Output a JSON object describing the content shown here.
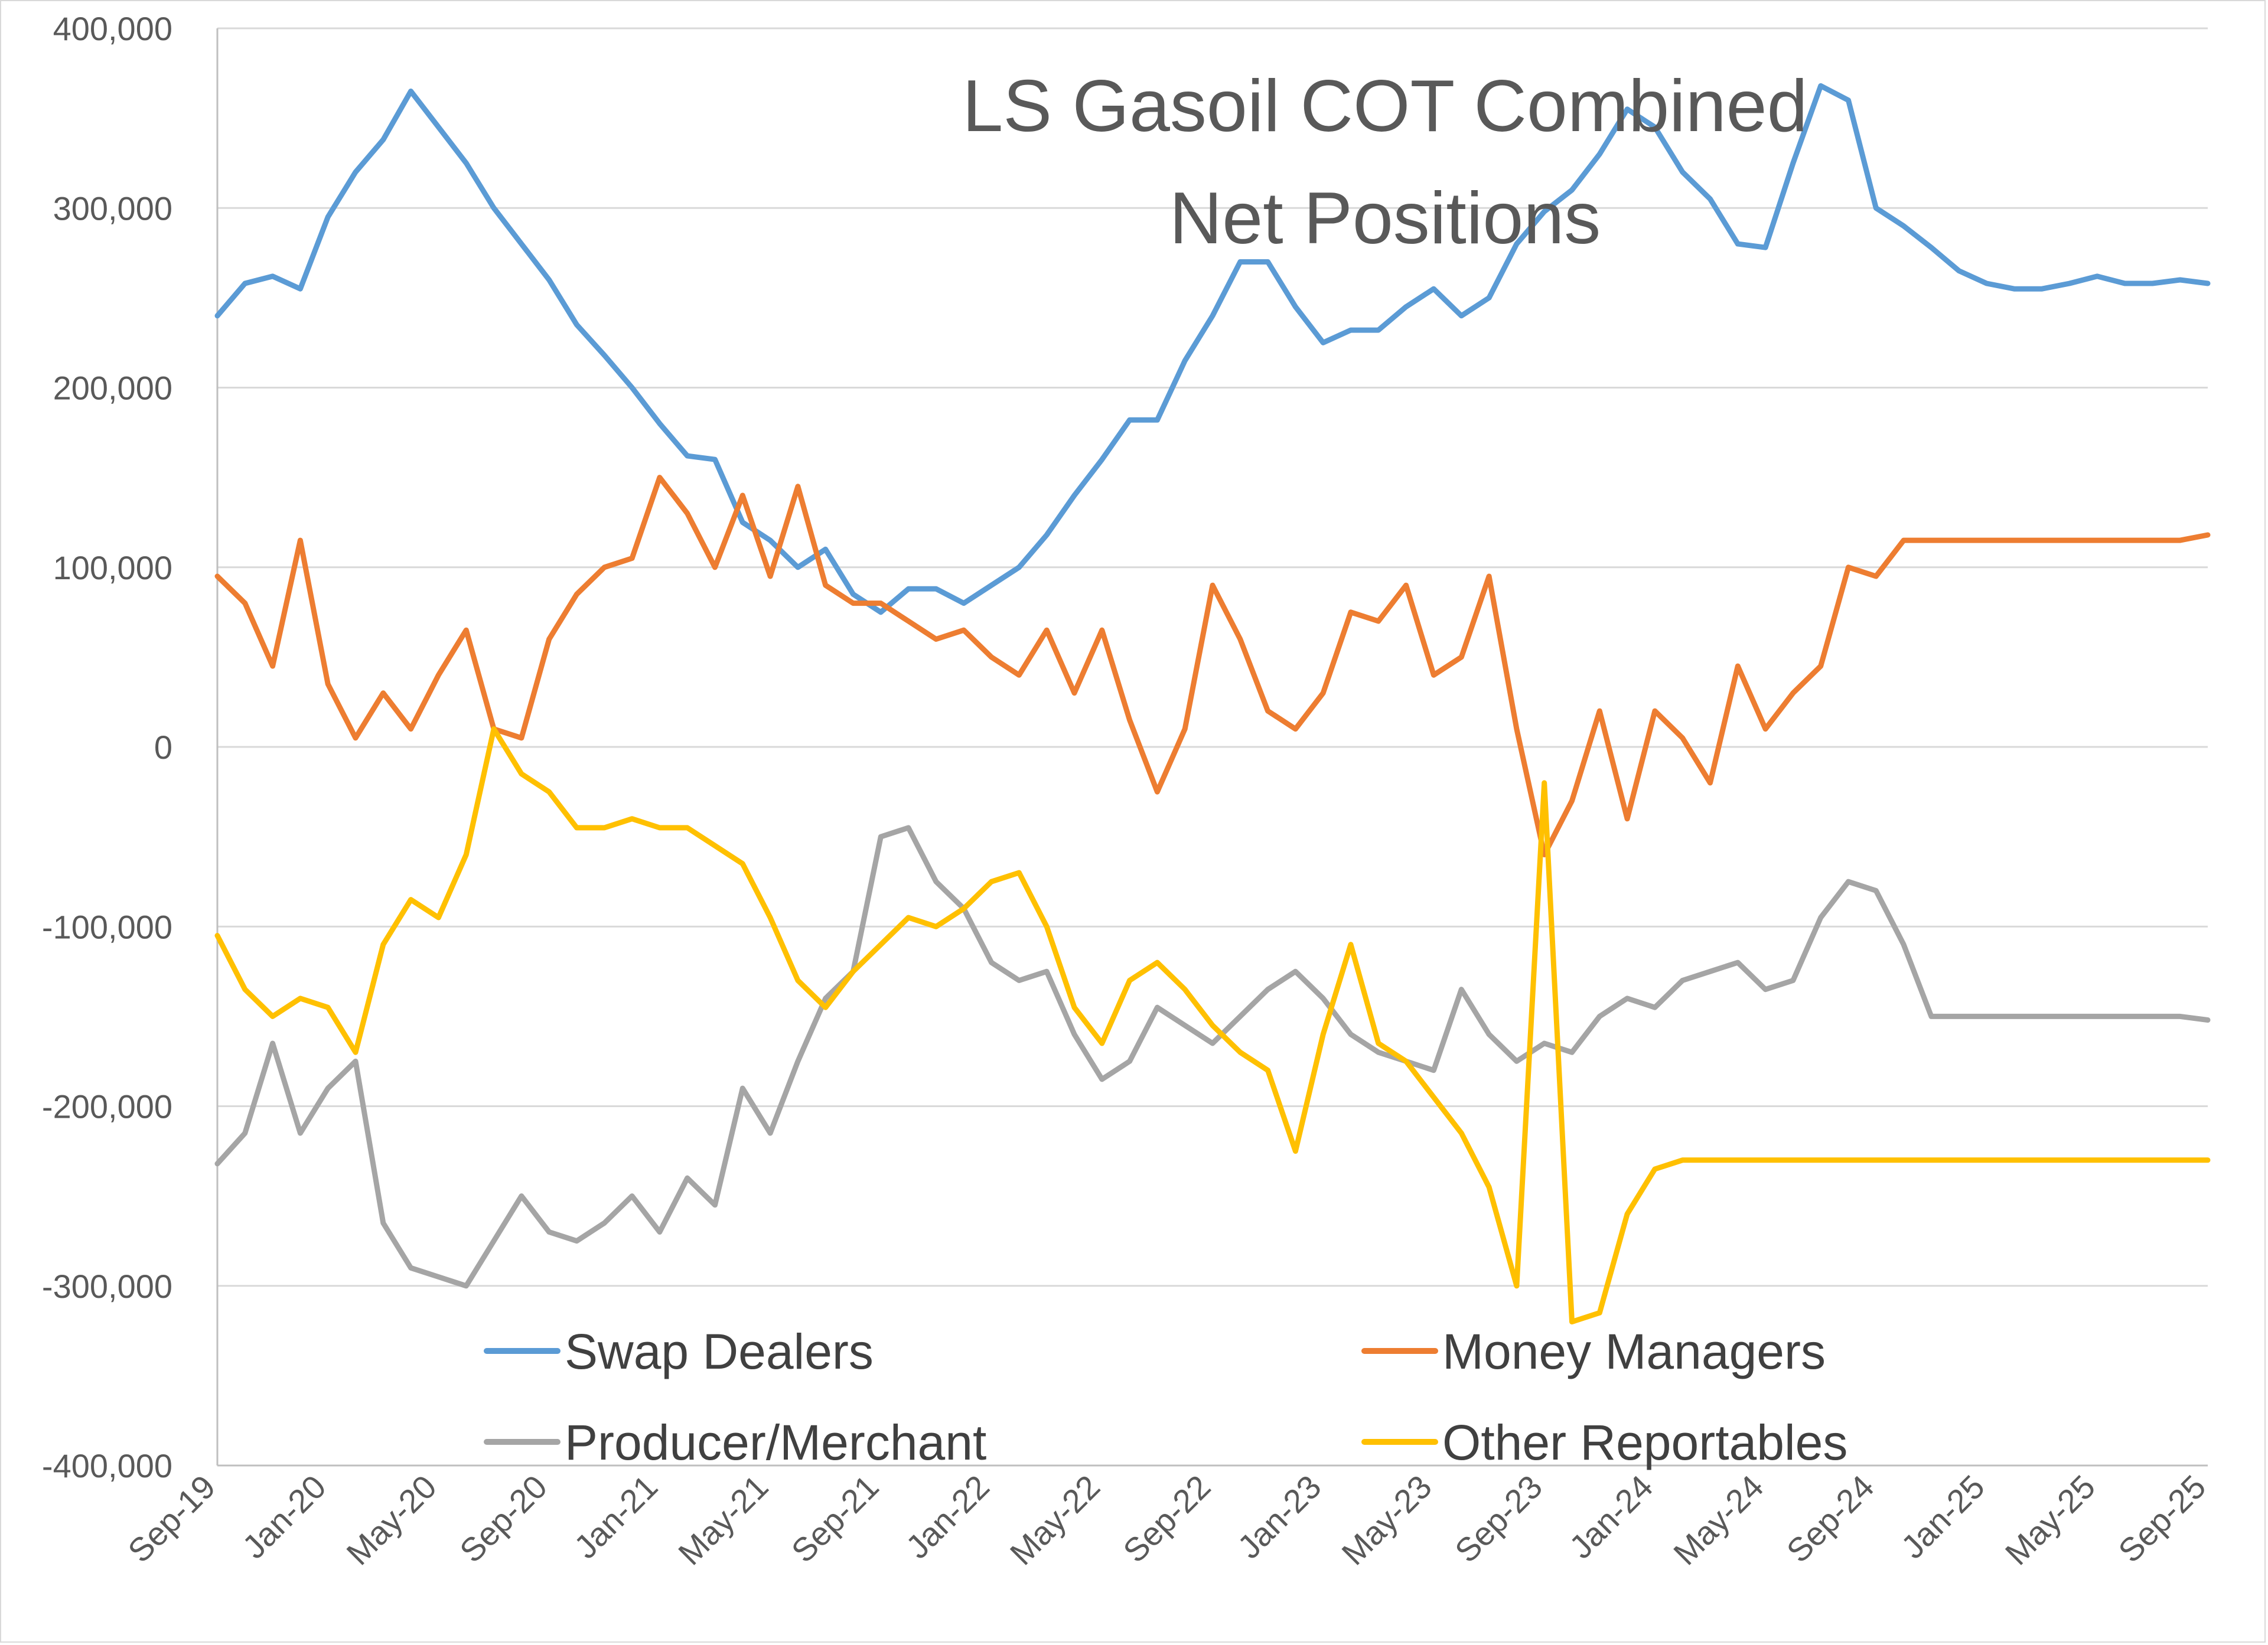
{
  "chart_data": {
    "type": "line",
    "title_lines": [
      "LS Gasoil COT Combined",
      "Net Positions"
    ],
    "xlabel": "",
    "ylabel": "",
    "ylim": [
      -400000,
      400000
    ],
    "y_ticks": [
      400000,
      300000,
      200000,
      100000,
      0,
      -100000,
      -200000,
      -300000,
      -400000
    ],
    "y_tick_labels": [
      "400,000",
      "300,000",
      "200,000",
      "100,000",
      "0",
      "-100,000",
      "-200,000",
      "-300,000",
      "-400,000"
    ],
    "x_range": [
      0,
      72
    ],
    "x_ticks": [
      0,
      4,
      8,
      12,
      16,
      20,
      24,
      28,
      32,
      36,
      40,
      44,
      48,
      52,
      56,
      60,
      64,
      68,
      72
    ],
    "x_tick_labels": [
      "Sep-19",
      "Jan-20",
      "May-20",
      "Sep-20",
      "Jan-21",
      "May-21",
      "Sep-21",
      "Jan-22",
      "May-22",
      "Sep-22",
      "Jan-23",
      "May-23",
      "Sep-23",
      "Jan-24",
      "May-24",
      "Sep-24",
      "Jan-25",
      "May-25",
      "Sep-25"
    ],
    "grid": true,
    "legend_position": "bottom-inside",
    "series": [
      {
        "name": "Swap Dealers",
        "color": "#5b9bd5",
        "x": [
          0,
          1,
          2,
          3,
          4,
          5,
          6,
          7,
          8,
          9,
          10,
          11,
          12,
          13,
          14,
          15,
          16,
          17,
          18,
          19,
          20,
          21,
          22,
          23,
          24,
          25,
          26,
          27,
          28,
          29,
          30,
          31,
          32,
          33,
          34,
          35,
          36,
          37,
          38,
          39,
          40,
          41,
          42,
          43,
          44,
          45,
          46,
          47,
          48,
          49,
          50,
          51,
          52,
          53,
          54,
          55,
          56,
          57,
          58,
          59,
          60,
          61,
          62,
          63,
          64,
          65,
          66,
          67,
          68,
          69,
          70,
          71,
          72
        ],
        "values": [
          240000,
          258000,
          262000,
          255000,
          295000,
          320000,
          338000,
          365000,
          345000,
          325000,
          300000,
          280000,
          260000,
          235000,
          218000,
          200000,
          180000,
          162000,
          160000,
          125000,
          115000,
          100000,
          110000,
          85000,
          75000,
          88000,
          88000,
          80000,
          90000,
          100000,
          118000,
          140000,
          160000,
          182000,
          182000,
          215000,
          240000,
          270000,
          270000,
          245000,
          225000,
          232000,
          232000,
          245000,
          255000,
          240000,
          250000,
          280000,
          298000,
          310000,
          330000,
          355000,
          345000,
          320000,
          305000,
          280000,
          278000,
          325000,
          368000,
          360000,
          300000,
          290000,
          278000,
          265000,
          258000,
          255000,
          255000,
          258000,
          262000,
          258000,
          258000,
          260000,
          258000
        ]
      },
      {
        "name": "Money Managers",
        "color": "#ed7d31",
        "x": [
          0,
          1,
          2,
          3,
          4,
          5,
          6,
          7,
          8,
          9,
          10,
          11,
          12,
          13,
          14,
          15,
          16,
          17,
          18,
          19,
          20,
          21,
          22,
          23,
          24,
          25,
          26,
          27,
          28,
          29,
          30,
          31,
          32,
          33,
          34,
          35,
          36,
          37,
          38,
          39,
          40,
          41,
          42,
          43,
          44,
          45,
          46,
          47,
          48,
          49,
          50,
          51,
          52,
          53,
          54,
          55,
          56,
          57,
          58,
          59,
          60,
          61,
          62,
          63,
          64,
          65,
          66,
          67,
          68,
          69,
          70,
          71,
          72
        ],
        "values": [
          95000,
          80000,
          45000,
          115000,
          35000,
          5000,
          30000,
          10000,
          40000,
          65000,
          10000,
          5000,
          60000,
          85000,
          100000,
          105000,
          150000,
          130000,
          100000,
          140000,
          95000,
          145000,
          90000,
          80000,
          80000,
          70000,
          60000,
          65000,
          50000,
          40000,
          65000,
          30000,
          65000,
          15000,
          -25000,
          10000,
          90000,
          60000,
          20000,
          10000,
          30000,
          75000,
          70000,
          90000,
          40000,
          50000,
          95000,
          10000,
          -60000,
          -30000,
          20000,
          -40000,
          20000,
          5000,
          -20000,
          45000,
          10000,
          30000,
          45000,
          100000,
          95000,
          115000,
          115000,
          115000,
          115000,
          115000,
          115000,
          115000,
          115000,
          115000,
          115000,
          115000,
          118000
        ]
      },
      {
        "name": "Producer/Merchant",
        "color": "#a5a5a5",
        "x": [
          0,
          1,
          2,
          3,
          4,
          5,
          6,
          7,
          8,
          9,
          10,
          11,
          12,
          13,
          14,
          15,
          16,
          17,
          18,
          19,
          20,
          21,
          22,
          23,
          24,
          25,
          26,
          27,
          28,
          29,
          30,
          31,
          32,
          33,
          34,
          35,
          36,
          37,
          38,
          39,
          40,
          41,
          42,
          43,
          44,
          45,
          46,
          47,
          48,
          49,
          50,
          51,
          52,
          53,
          54,
          55,
          56,
          57,
          58,
          59,
          60,
          61,
          62,
          63,
          64,
          65,
          66,
          67,
          68,
          69,
          70,
          71,
          72
        ],
        "values": [
          -232000,
          -215000,
          -165000,
          -215000,
          -190000,
          -175000,
          -265000,
          -290000,
          -295000,
          -300000,
          -275000,
          -250000,
          -270000,
          -275000,
          -265000,
          -250000,
          -270000,
          -240000,
          -255000,
          -190000,
          -215000,
          -175000,
          -140000,
          -125000,
          -50000,
          -45000,
          -75000,
          -90000,
          -120000,
          -130000,
          -125000,
          -160000,
          -185000,
          -175000,
          -145000,
          -155000,
          -165000,
          -150000,
          -135000,
          -125000,
          -140000,
          -160000,
          -170000,
          -175000,
          -180000,
          -135000,
          -160000,
          -175000,
          -165000,
          -170000,
          -150000,
          -140000,
          -145000,
          -130000,
          -125000,
          -120000,
          -135000,
          -130000,
          -95000,
          -75000,
          -80000,
          -110000,
          -150000,
          -150000,
          -150000,
          -150000,
          -150000,
          -150000,
          -150000,
          -150000,
          -150000,
          -150000,
          -152000
        ]
      },
      {
        "name": "Other Reportables",
        "color": "#ffc000",
        "x": [
          0,
          1,
          2,
          3,
          4,
          5,
          6,
          7,
          8,
          9,
          10,
          11,
          12,
          13,
          14,
          15,
          16,
          17,
          18,
          19,
          20,
          21,
          22,
          23,
          24,
          25,
          26,
          27,
          28,
          29,
          30,
          31,
          32,
          33,
          34,
          35,
          36,
          37,
          38,
          39,
          40,
          41,
          42,
          43,
          44,
          45,
          46,
          47,
          48,
          49,
          50,
          51,
          52,
          53,
          54,
          55,
          56,
          57,
          58,
          59,
          60,
          61,
          62,
          63,
          64,
          65,
          66,
          67,
          68,
          69,
          70,
          71,
          72
        ],
        "values": [
          -105000,
          -135000,
          -150000,
          -140000,
          -145000,
          -170000,
          -110000,
          -85000,
          -95000,
          -60000,
          10000,
          -15000,
          -25000,
          -45000,
          -45000,
          -40000,
          -45000,
          -45000,
          -55000,
          -65000,
          -95000,
          -130000,
          -145000,
          -125000,
          -110000,
          -95000,
          -100000,
          -90000,
          -75000,
          -70000,
          -100000,
          -145000,
          -165000,
          -130000,
          -120000,
          -135000,
          -155000,
          -170000,
          -180000,
          -225000,
          -160000,
          -110000,
          -165000,
          -175000,
          -195000,
          -215000,
          -245000,
          -300000,
          -20000,
          -320000,
          -315000,
          -260000,
          -235000,
          -230000,
          -230000,
          -230000,
          -230000,
          -230000,
          -230000,
          -230000,
          -230000,
          -230000,
          -230000,
          -230000,
          -230000,
          -230000,
          -230000,
          -230000,
          -230000,
          -230000,
          -230000,
          -230000,
          -230000
        ]
      }
    ]
  }
}
